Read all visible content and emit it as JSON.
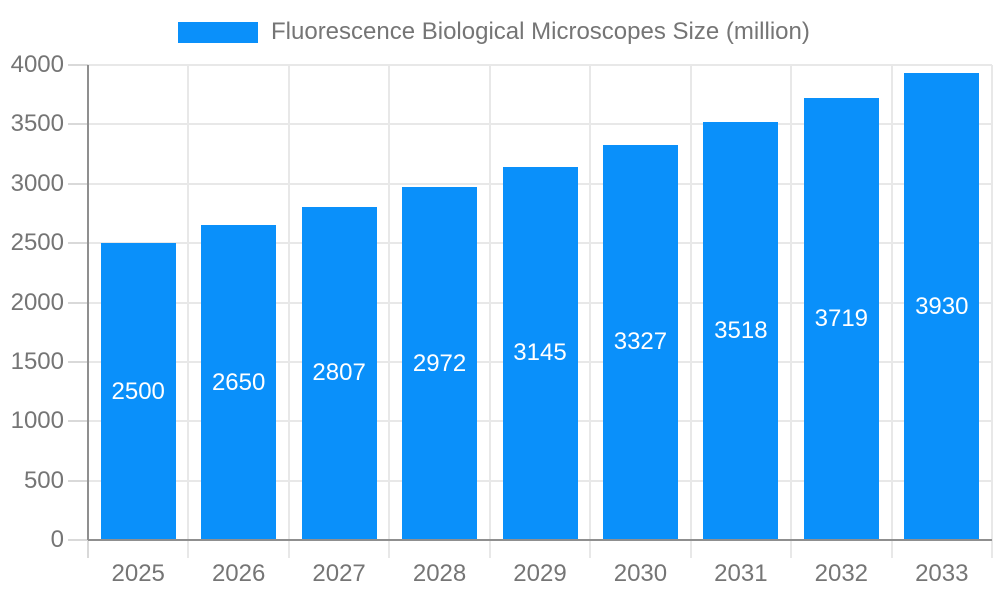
{
  "chart_data": {
    "type": "bar",
    "title": "Fluorescence Biological Microscopes Size (million)",
    "categories": [
      "2025",
      "2026",
      "2027",
      "2028",
      "2029",
      "2030",
      "2031",
      "2032",
      "2033"
    ],
    "values": [
      2500,
      2650,
      2807,
      2972,
      3145,
      3327,
      3518,
      3719,
      3930
    ],
    "xlabel": "",
    "ylabel": "",
    "ylim": [
      0,
      4000
    ],
    "yticks": [
      0,
      500,
      1000,
      1500,
      2000,
      2500,
      3000,
      3500,
      4000
    ],
    "grid": "on",
    "legend_position": "top",
    "bar_value_labels": [
      "2500",
      "2650",
      "2807",
      "2972",
      "3145",
      "3327",
      "3518",
      "3719",
      "3930"
    ],
    "colors": {
      "bar": "#0a90fa",
      "bar_value_text": "#ffffff",
      "axis_text": "#757575",
      "legend_text": "#757575",
      "gridline": "#e8e8e8",
      "tick": "#d9d9d9",
      "axis_line": "#8f8f8f",
      "background": "#ffffff"
    }
  }
}
